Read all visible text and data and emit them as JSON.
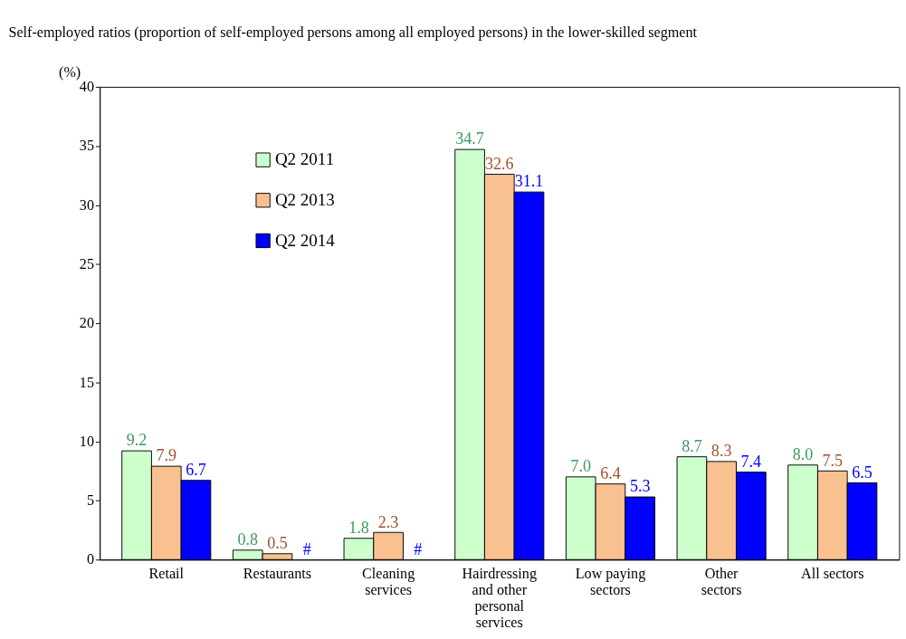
{
  "chart_data": {
    "type": "bar",
    "title": "Self-employed ratios (proportion of self-employed persons among all employed persons) in the lower-skilled segment",
    "ylabel": "(%)",
    "categories": [
      "Retail",
      "Restaurants",
      "Cleaning services",
      "Hairdressing and other personal services",
      "Low paying sectors",
      "Other sectors",
      "All sectors"
    ],
    "series": [
      {
        "name": "Q2 2011",
        "color": "#ccffcc",
        "values": [
          9.2,
          0.8,
          1.8,
          34.7,
          7.0,
          8.7,
          8.0
        ],
        "value_labels": [
          "9.2",
          "0.8",
          "1.8",
          "34.7",
          "7.0",
          "8.7",
          "8.0"
        ]
      },
      {
        "name": "Q2 2013",
        "color": "#f9c090",
        "values": [
          7.9,
          0.5,
          2.3,
          32.6,
          6.4,
          8.3,
          7.5
        ],
        "value_labels": [
          "7.9",
          "0.5",
          "2.3",
          "32.6",
          "6.4",
          "8.3",
          "7.5"
        ]
      },
      {
        "name": "Q2 2014",
        "color": "#0000ff",
        "values": [
          6.7,
          null,
          null,
          31.1,
          5.3,
          7.4,
          6.5
        ],
        "value_labels": [
          "6.7",
          "#",
          "#",
          "31.1",
          "5.3",
          "7.4",
          "6.5"
        ]
      }
    ],
    "ylim": [
      0,
      40
    ],
    "yticks": [
      0,
      5,
      10,
      15,
      20,
      25,
      30,
      35,
      40
    ],
    "legend": "top left",
    "grid": false
  }
}
